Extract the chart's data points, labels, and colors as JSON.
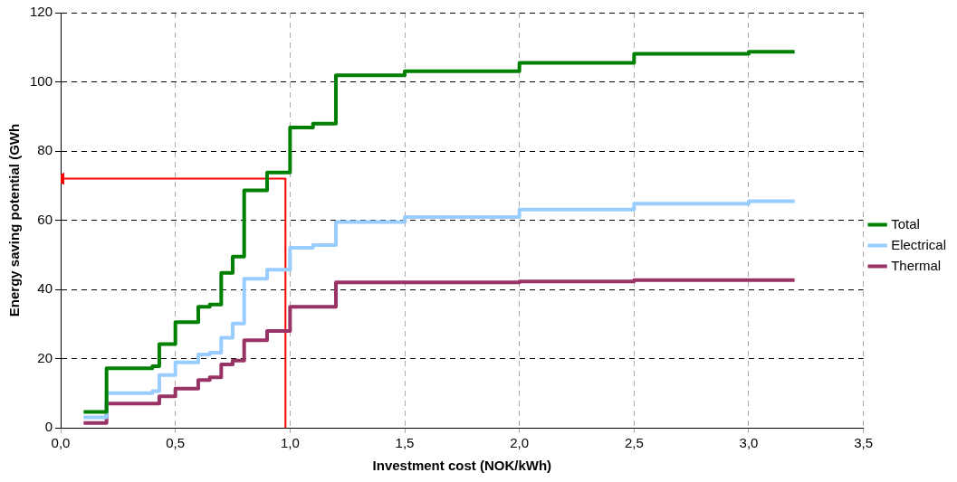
{
  "chart_data": {
    "type": "step",
    "xlabel": "Investment cost (NOK/kWh)",
    "ylabel": "Energy saving potential (GWh",
    "xlim": [
      0,
      3.5
    ],
    "xticks": [
      {
        "value": 0,
        "label": "0,0"
      },
      {
        "value": 0.5,
        "label": "0,5"
      },
      {
        "value": 1,
        "label": "1,0"
      },
      {
        "value": 1.5,
        "label": "1,5"
      },
      {
        "value": 2,
        "label": "2,0"
      },
      {
        "value": 2.5,
        "label": "2,5"
      },
      {
        "value": 3,
        "label": "3,0"
      },
      {
        "value": 3.5,
        "label": "3,5"
      }
    ],
    "ylim": [
      0,
      120
    ],
    "yticks": [
      0,
      20,
      40,
      60,
      80,
      100,
      120
    ],
    "grid": true,
    "legend": "right",
    "marker": "none",
    "line_style": "solid",
    "series": [
      {
        "name": "Total",
        "color": "#008000",
        "x": [
          0.1,
          0.2,
          0.4,
          0.43,
          0.5,
          0.6,
          0.65,
          0.7,
          0.75,
          0.8,
          0.9,
          1.0,
          1.1,
          1.2,
          1.5,
          2.0,
          2.5,
          3.0,
          3.2
        ],
        "values": [
          4.6,
          17.2,
          17.8,
          24.2,
          30.5,
          35.0,
          35.6,
          44.8,
          49.5,
          68.6,
          73.8,
          86.8,
          87.9,
          101.9,
          103.1,
          105.5,
          108.1,
          108.7,
          108.7
        ]
      },
      {
        "name": "Electrical",
        "color": "#99ccff",
        "x": [
          0.1,
          0.2,
          0.4,
          0.43,
          0.5,
          0.6,
          0.65,
          0.7,
          0.75,
          0.8,
          0.9,
          1.0,
          1.1,
          1.2,
          1.5,
          2.0,
          2.5,
          3.0,
          3.2
        ],
        "values": [
          3.0,
          10.0,
          10.6,
          15.2,
          18.9,
          21.2,
          21.7,
          26.0,
          30.1,
          43.1,
          45.7,
          52.0,
          52.8,
          59.5,
          60.9,
          63.1,
          64.8,
          65.5,
          65.5
        ]
      },
      {
        "name": "Thermal",
        "color": "#993366",
        "x": [
          0.1,
          0.2,
          0.43,
          0.5,
          0.6,
          0.65,
          0.7,
          0.75,
          0.8,
          0.9,
          1.0,
          1.2,
          2.0,
          2.5,
          3.2
        ],
        "values": [
          1.4,
          7.0,
          9.1,
          11.3,
          13.8,
          14.6,
          18.3,
          19.4,
          25.3,
          28.0,
          35.0,
          42.0,
          42.3,
          42.7,
          42.7
        ]
      },
      {
        "type": "line",
        "color": "#ff0000",
        "x": [
          0.98,
          0.98,
          0
        ],
        "values": [
          0,
          72,
          72
        ]
      }
    ]
  }
}
